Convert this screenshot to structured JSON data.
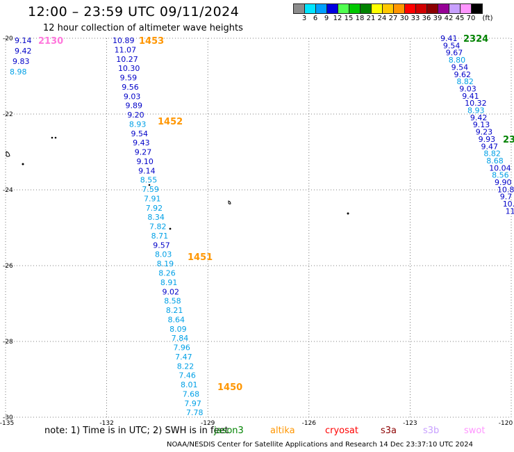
{
  "header": {
    "title": "12:00 – 23:59 UTC 09/11/2024",
    "subtitle": "12 hour collection of altimeter wave heights"
  },
  "legend": {
    "swatches": [
      {
        "color": "#8c8c8c",
        "label": "3"
      },
      {
        "color": "#00e5ff",
        "label": "6"
      },
      {
        "color": "#00a0ff",
        "label": "9"
      },
      {
        "color": "#0000e0",
        "label": "12"
      },
      {
        "color": "#50ff50",
        "label": "15"
      },
      {
        "color": "#00c800",
        "label": "18"
      },
      {
        "color": "#008200",
        "label": "21"
      },
      {
        "color": "#ffff00",
        "label": "24"
      },
      {
        "color": "#ffc800",
        "label": "27"
      },
      {
        "color": "#ff9600",
        "label": "30"
      },
      {
        "color": "#ff0000",
        "label": "33"
      },
      {
        "color": "#d20000",
        "label": "36"
      },
      {
        "color": "#8c0000",
        "label": "39"
      },
      {
        "color": "#960096",
        "label": "42"
      },
      {
        "color": "#c8a0ff",
        "label": "45"
      },
      {
        "color": "#ff96ff",
        "label": "70"
      },
      {
        "color": "#000000",
        "label": "(ft)"
      }
    ]
  },
  "axes": {
    "lon_ticks": [
      {
        "lon": -135,
        "label": "-135"
      },
      {
        "lon": -132,
        "label": "-132"
      },
      {
        "lon": -129,
        "label": "-129"
      },
      {
        "lon": -126,
        "label": "-126"
      },
      {
        "lon": -123,
        "label": "-123"
      },
      {
        "lon": -120,
        "label": "-120"
      }
    ],
    "lat_ticks": [
      {
        "lat": -20,
        "label": "-20"
      },
      {
        "lat": -22,
        "label": "-22"
      },
      {
        "lat": -24,
        "label": "-24"
      },
      {
        "lat": -26,
        "label": "-26"
      },
      {
        "lat": -28,
        "label": "-28"
      },
      {
        "lat": -30,
        "label": "-30"
      }
    ],
    "lon_range": [
      -135,
      -120
    ],
    "lat_range": [
      -20,
      -30
    ]
  },
  "tracks": [
    {
      "values": [
        {
          "text": "9.14",
          "color": "#0000c8"
        },
        {
          "text": "9.42",
          "color": "#0000c8"
        },
        {
          "text": "9.83",
          "color": "#0000c8"
        },
        {
          "text": "8.98",
          "color": "#00a0e6"
        }
      ]
    },
    {
      "values": [
        {
          "text": "10.89",
          "color": "#0000c8"
        },
        {
          "text": "11.07",
          "color": "#0000c8"
        },
        {
          "text": "10.27",
          "color": "#0000c8"
        },
        {
          "text": "10.30",
          "color": "#0000c8"
        },
        {
          "text": "9.59",
          "color": "#0000c8"
        },
        {
          "text": "9.56",
          "color": "#0000c8"
        },
        {
          "text": "9.03",
          "color": "#0000c8"
        },
        {
          "text": "9.89",
          "color": "#0000c8"
        },
        {
          "text": "9.20",
          "color": "#0000c8"
        },
        {
          "text": "8.93",
          "color": "#00a0e6"
        },
        {
          "text": "9.54",
          "color": "#0000c8"
        },
        {
          "text": "9.43",
          "color": "#0000c8"
        },
        {
          "text": "9.27",
          "color": "#0000c8"
        },
        {
          "text": "9.10",
          "color": "#0000c8"
        },
        {
          "text": "9.14",
          "color": "#0000c8"
        },
        {
          "text": "8.55",
          "color": "#00a0e6"
        },
        {
          "text": "7.59",
          "color": "#00a0e6"
        },
        {
          "text": "7.91",
          "color": "#00a0e6"
        },
        {
          "text": "7.92",
          "color": "#00a0e6"
        },
        {
          "text": "8.34",
          "color": "#00a0e6"
        },
        {
          "text": "7.82",
          "color": "#00a0e6"
        },
        {
          "text": "8.71",
          "color": "#00a0e6"
        },
        {
          "text": "9.57",
          "color": "#0000c8"
        },
        {
          "text": "8.03",
          "color": "#00a0e6"
        },
        {
          "text": "8.19",
          "color": "#00a0e6"
        },
        {
          "text": "8.26",
          "color": "#00a0e6"
        },
        {
          "text": "8.91",
          "color": "#00a0e6"
        },
        {
          "text": "9.02",
          "color": "#0000c8"
        },
        {
          "text": "8.58",
          "color": "#00a0e6"
        },
        {
          "text": "8.21",
          "color": "#00a0e6"
        },
        {
          "text": "8.64",
          "color": "#00a0e6"
        },
        {
          "text": "8.09",
          "color": "#00a0e6"
        },
        {
          "text": "7.84",
          "color": "#00a0e6"
        },
        {
          "text": "7.96",
          "color": "#00a0e6"
        },
        {
          "text": "7.47",
          "color": "#00a0e6"
        },
        {
          "text": "8.22",
          "color": "#00a0e6"
        },
        {
          "text": "7.46",
          "color": "#00a0e6"
        },
        {
          "text": "8.01",
          "color": "#00a0e6"
        },
        {
          "text": "7.68",
          "color": "#00a0e6"
        },
        {
          "text": "7.97",
          "color": "#00a0e6"
        },
        {
          "text": "7.78",
          "color": "#00a0e6"
        }
      ]
    },
    {
      "values": [
        {
          "text": "9.41",
          "color": "#0000c8"
        },
        {
          "text": "9.54",
          "color": "#0000c8"
        },
        {
          "text": "9.67",
          "color": "#0000c8"
        },
        {
          "text": "8.80",
          "color": "#00a0e6"
        },
        {
          "text": "9.54",
          "color": "#0000c8"
        },
        {
          "text": "9.62",
          "color": "#0000c8"
        },
        {
          "text": "8.82",
          "color": "#00a0e6"
        },
        {
          "text": "9.03",
          "color": "#0000c8"
        },
        {
          "text": "9.41",
          "color": "#0000c8"
        },
        {
          "text": "10.32",
          "color": "#0000c8"
        },
        {
          "text": "8.93",
          "color": "#00a0e6"
        },
        {
          "text": "9.42",
          "color": "#0000c8"
        },
        {
          "text": "9.13",
          "color": "#0000c8"
        },
        {
          "text": "9.23",
          "color": "#0000c8"
        },
        {
          "text": "9.93",
          "color": "#0000c8"
        },
        {
          "text": "9.47",
          "color": "#0000c8"
        },
        {
          "text": "8.82",
          "color": "#00a0e6"
        },
        {
          "text": "8.68",
          "color": "#00a0e6"
        },
        {
          "text": "10.04",
          "color": "#0000c8"
        },
        {
          "text": "8.56",
          "color": "#00a0e6"
        },
        {
          "text": "9.90",
          "color": "#0000c8"
        },
        {
          "text": "10.8",
          "color": "#0000c8"
        },
        {
          "text": "9.7",
          "color": "#0000c8"
        },
        {
          "text": "10.",
          "color": "#0000c8"
        },
        {
          "text": "11",
          "color": "#0000c8"
        }
      ]
    }
  ],
  "time_labels": [
    {
      "text": "2130",
      "color": "#ff78dc"
    },
    {
      "text": "1453",
      "color": "#ff9600"
    },
    {
      "text": "1452",
      "color": "#ff9600"
    },
    {
      "text": "1451",
      "color": "#ff9600"
    },
    {
      "text": "1450",
      "color": "#ff9600"
    },
    {
      "text": "2324",
      "color": "#008200"
    },
    {
      "text": "23",
      "color": "#008200"
    }
  ],
  "note": "note: 1) Time is in UTC; 2) SWH is in feet",
  "satellites": [
    {
      "name": "jason3",
      "color": "#008200"
    },
    {
      "name": "altika",
      "color": "#ff9600"
    },
    {
      "name": "cryosat",
      "color": "#ff0000"
    },
    {
      "name": "s3a",
      "color": "#8c0000"
    },
    {
      "name": "s3b",
      "color": "#c8a0ff"
    },
    {
      "name": "swot",
      "color": "#ff96ff"
    }
  ],
  "footer": "NOAA/NESDIS Center for Satellite Applications and Research    14 Dec 23:37:10 UTC 2024"
}
